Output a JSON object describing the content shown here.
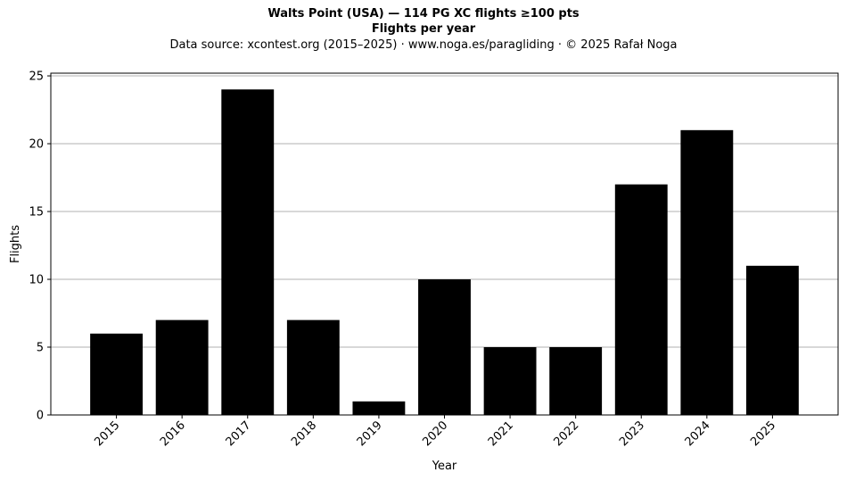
{
  "chart_data": {
    "type": "bar",
    "title": "Walts Point (USA)  —  114 PG XC flights ≥100 pts",
    "subtitle": "Flights per year",
    "source_note": "Data source: xcontest.org (2015–2025)  ·  www.noga.es/paragliding  ·  © 2025 Rafał Noga",
    "xlabel": "Year",
    "ylabel": "Flights",
    "categories": [
      "2015",
      "2016",
      "2017",
      "2018",
      "2019",
      "2020",
      "2021",
      "2022",
      "2023",
      "2024",
      "2025"
    ],
    "values": [
      6,
      7,
      24,
      7,
      1,
      10,
      5,
      5,
      17,
      21,
      11
    ],
    "ylim": [
      0,
      25.2
    ],
    "yticks": [
      "0",
      "5",
      "10",
      "15",
      "20",
      "25"
    ],
    "grid": "horizontal",
    "bar_color": "#000000",
    "grid_color": "#b0b0b0"
  }
}
